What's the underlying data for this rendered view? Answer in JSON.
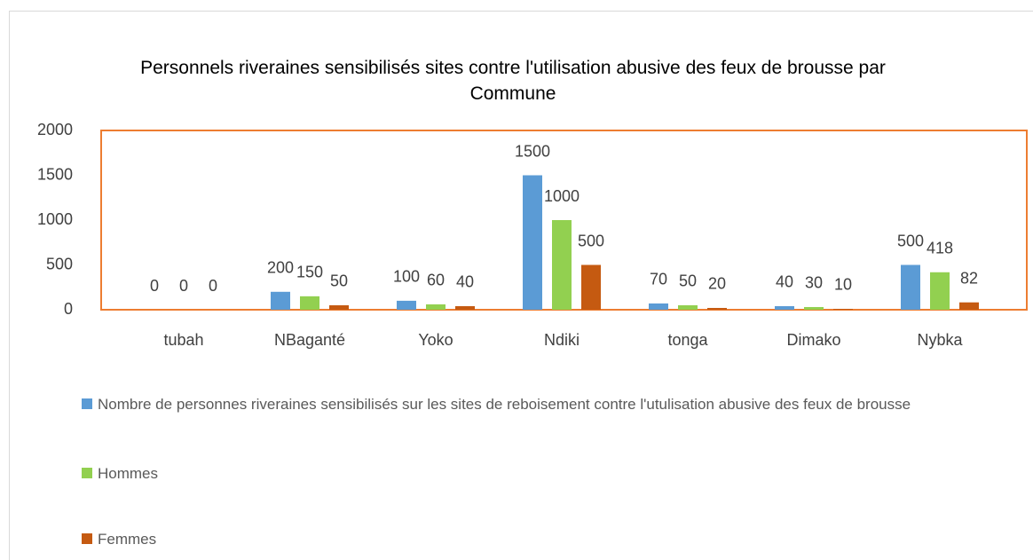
{
  "chart_data": {
    "type": "bar",
    "title": "Personnels riveraines sensibilisés sites contre l'utilisation abusive des feux de brousse  par Commune",
    "categories": [
      "tubah",
      "NBaganté",
      "Yoko",
      "Ndiki",
      "tonga",
      "Dimako",
      "Nybka"
    ],
    "series": [
      {
        "name": "Nombre de personnes riveraines sensibilisés sur les  sites de reboisement contre l'utulisation abusive des feux de brousse",
        "color": "#5b9bd5",
        "values": [
          0,
          200,
          100,
          1500,
          70,
          40,
          500
        ]
      },
      {
        "name": "Hommes",
        "color": "#92d050",
        "values": [
          0,
          150,
          60,
          1000,
          50,
          30,
          418
        ]
      },
      {
        "name": "Femmes",
        "color": "#c55a11",
        "values": [
          0,
          50,
          40,
          500,
          20,
          10,
          82
        ]
      }
    ],
    "ylim": [
      0,
      2000
    ],
    "yticks": [
      0,
      500,
      1000,
      1500,
      2000
    ],
    "grid": false
  }
}
